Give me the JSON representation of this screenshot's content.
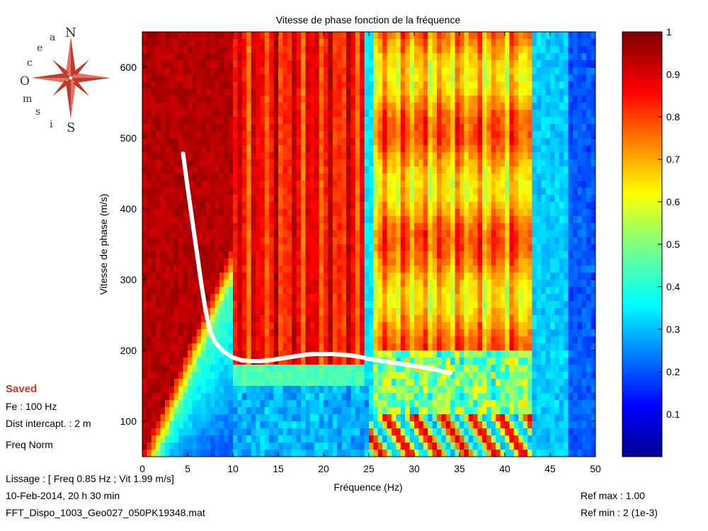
{
  "logo": {
    "letters": [
      "O",
      "c",
      "e",
      "a",
      "N",
      "S",
      "i",
      "s",
      "m"
    ]
  },
  "info": {
    "saved": "Saved",
    "fe": "Fe : 100 Hz",
    "dist": "Dist intercapt. : 2 m",
    "norm": "Freq Norm",
    "lissage": "Lissage : [ Freq 0.85 Hz ; Vit 1.99 m/s]",
    "date": "10-Feb-2014,  20 h 30 min",
    "file": "FFT_Dispo_1003_Geo027_050PK19348.mat",
    "ref_max": "Ref max :  1.00",
    "ref_min": "Ref min : 2 (1e-3)"
  },
  "colors": {
    "curve": "#ffffff",
    "saved": "#c0392b",
    "logo": "#c0392b"
  },
  "chart_data": {
    "type": "heatmap",
    "title": "Vitesse de phase fonction de la fréquence",
    "xlabel": "Fréquence (Hz)",
    "ylabel": "Vitesse de phase (m/s)",
    "xlim": [
      0,
      50
    ],
    "ylim": [
      50,
      650
    ],
    "xticks": [
      0,
      5,
      10,
      15,
      20,
      25,
      30,
      35,
      40,
      45,
      50
    ],
    "yticks": [
      100,
      200,
      300,
      400,
      500,
      600
    ],
    "colorbar": {
      "range": [
        0,
        1
      ],
      "ticks": [
        "0.1",
        "0.2",
        "0.3",
        "0.4",
        "0.5",
        "0.6",
        "0.7",
        "0.8",
        "0.9",
        "1"
      ]
    },
    "series": [
      {
        "x": [
          4.5,
          5.0,
          5.5,
          6.0,
          6.5,
          7.0,
          7.5,
          8.0,
          9.0,
          10.0,
          11.0,
          12.0,
          13.0,
          14.0,
          15.0,
          16.0,
          17.0,
          18.0,
          19.0,
          20.0,
          21.0,
          22.0,
          23.0,
          24.0,
          25.0,
          26.0,
          27.0,
          28.0,
          29.0,
          30.0,
          31.0,
          32.0,
          33.0,
          34.0
        ],
        "y": [
          478,
          430,
          385,
          340,
          295,
          255,
          228,
          212,
          198,
          190,
          186,
          185,
          185,
          186,
          188,
          190,
          192,
          194,
          195,
          195,
          195,
          194,
          193,
          191,
          188,
          186,
          184,
          182,
          180,
          178,
          176,
          174,
          171,
          168
        ]
      }
    ]
  }
}
